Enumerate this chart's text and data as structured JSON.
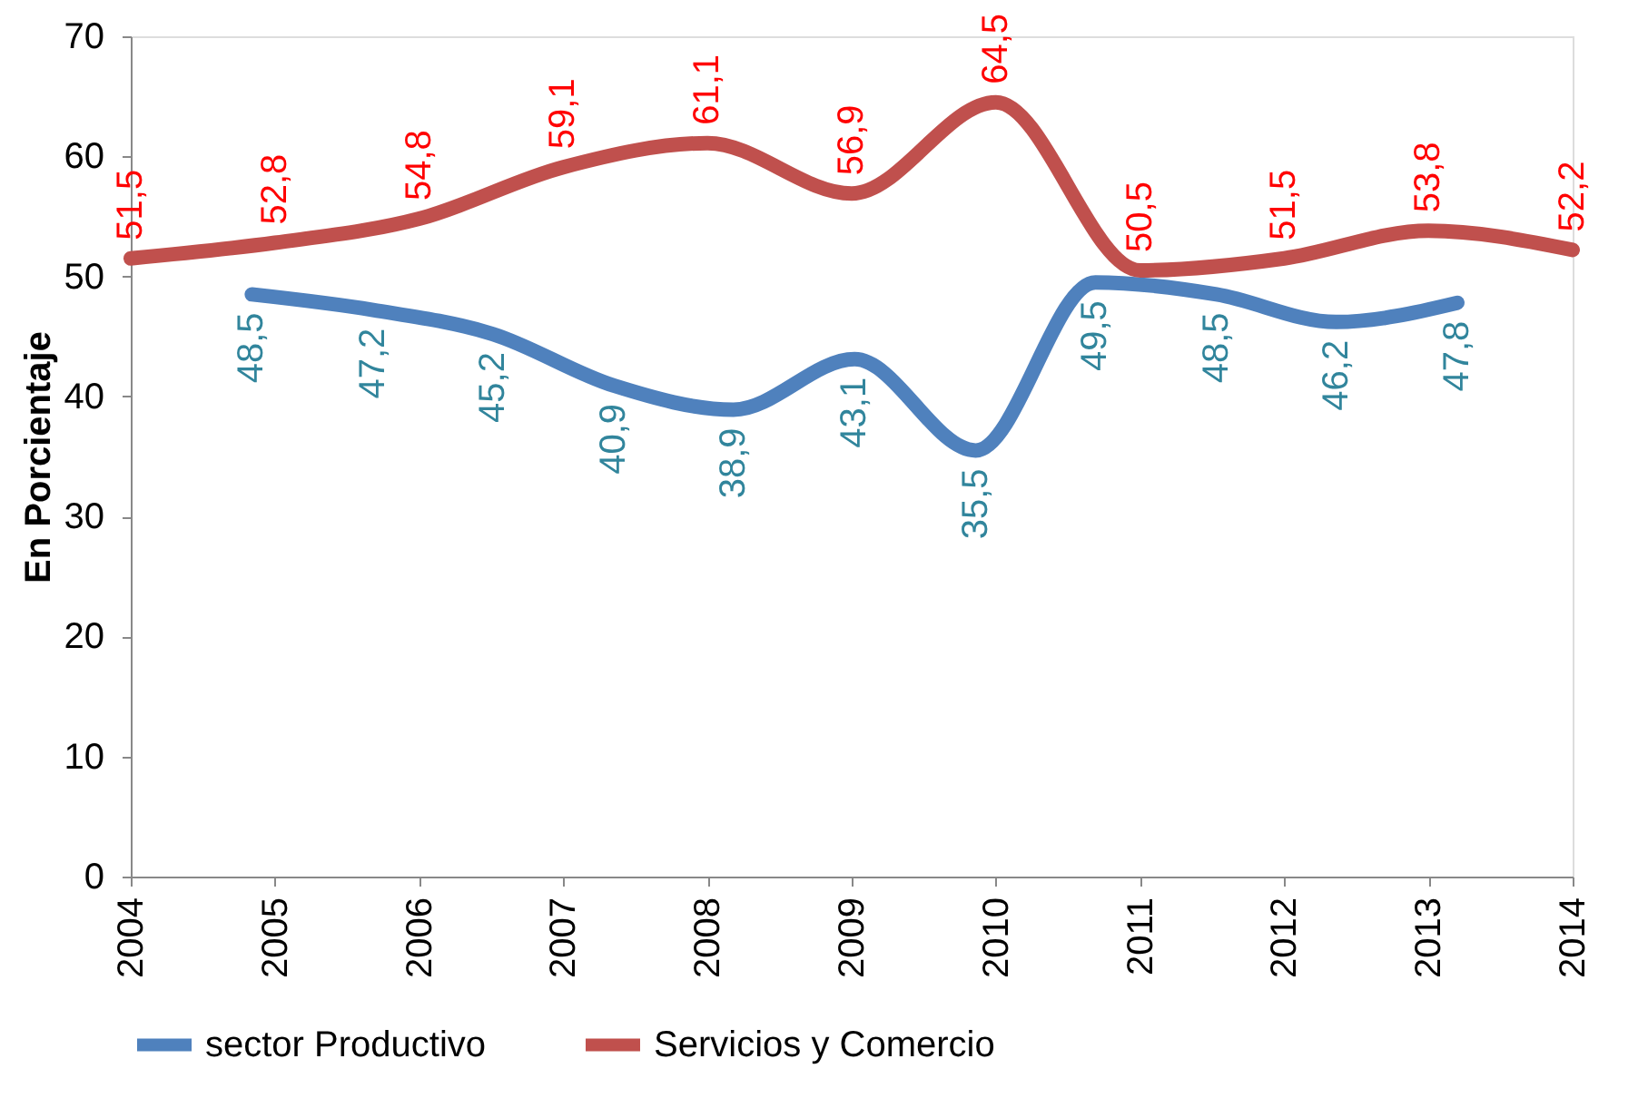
{
  "chart_data": {
    "type": "line",
    "ylabel": "En Porcientaje",
    "xlim": [
      2004,
      2014
    ],
    "xticks": [
      2004,
      2005,
      2006,
      2007,
      2008,
      2009,
      2010,
      2011,
      2012,
      2013,
      2014
    ],
    "ylim": [
      0,
      70
    ],
    "yticks": [
      0,
      10,
      20,
      30,
      40,
      50,
      60,
      70
    ],
    "grid": false,
    "legend": "bottom",
    "line_style": "solid",
    "series": [
      {
        "name": "sector Productivo",
        "color": "#4f81bd",
        "x": [
          2004.84,
          2005.68,
          2006.51,
          2007.35,
          2008.18,
          2009.02,
          2009.86,
          2010.69,
          2011.53,
          2012.36,
          2013.2
        ],
        "values": [
          48.5,
          47.2,
          45.2,
          40.9,
          38.9,
          43.1,
          35.5,
          49.5,
          48.5,
          46.2,
          47.8
        ],
        "value_labels": [
          "48,5",
          "47,2",
          "45,2",
          "40,9",
          "38,9",
          "43,1",
          "35,5",
          "49,5",
          "48,5",
          "46,2",
          "47,8"
        ]
      },
      {
        "name": "Servicios y Comercio",
        "color": "#c0504d",
        "x": [
          2004,
          2005,
          2006,
          2007,
          2008,
          2009,
          2010,
          2011,
          2012,
          2013,
          2014
        ],
        "values": [
          51.5,
          52.8,
          54.8,
          59.1,
          61.1,
          56.9,
          64.5,
          50.5,
          51.5,
          53.8,
          52.2
        ],
        "value_labels": [
          "51,5",
          "52,8",
          "54,8",
          "59,1",
          "61,1",
          "56,9",
          "64,5",
          "50,5",
          "51,5",
          "53,8",
          "52,2"
        ]
      }
    ]
  }
}
